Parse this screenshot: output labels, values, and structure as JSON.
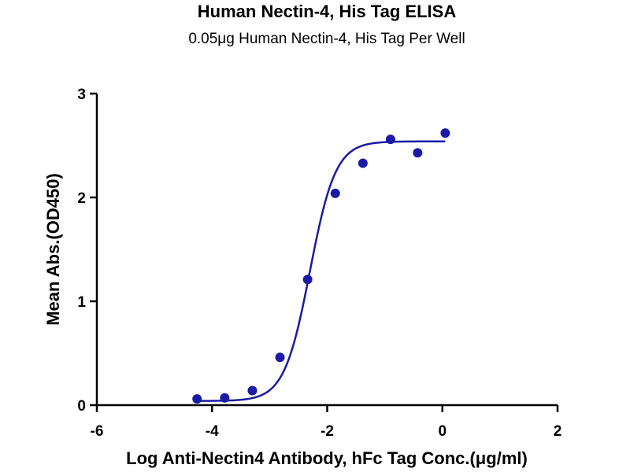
{
  "chart_data": {
    "type": "scatter",
    "title": "Human Nectin-4, His Tag ELISA",
    "subtitle": "0.05μg Human Nectin-4, His Tag Per Well",
    "xlabel": "Log Anti-Nectin4 Antibody, hFc Tag Conc.(μg/ml)",
    "ylabel": "Mean Abs.(OD450)",
    "xlim": [
      -6,
      2
    ],
    "ylim": [
      0,
      3
    ],
    "xticks": [
      -6,
      -4,
      -2,
      0,
      2
    ],
    "yticks": [
      0,
      1,
      2,
      3
    ],
    "grid": false,
    "series": [
      {
        "color": "#1a1aa6",
        "points": [
          {
            "x": -4.26,
            "y": 0.06
          },
          {
            "x": -3.78,
            "y": 0.07
          },
          {
            "x": -3.3,
            "y": 0.14
          },
          {
            "x": -2.82,
            "y": 0.46
          },
          {
            "x": -2.34,
            "y": 1.21
          },
          {
            "x": -1.86,
            "y": 2.04
          },
          {
            "x": -1.38,
            "y": 2.33
          },
          {
            "x": -0.9,
            "y": 2.56
          },
          {
            "x": -0.43,
            "y": 2.43
          },
          {
            "x": 0.05,
            "y": 2.62
          }
        ]
      }
    ],
    "fit_curve": {
      "model": "4PL",
      "bottom": 0.04,
      "top": 2.54,
      "log_ec50": -2.3,
      "hill_slope": 1.95,
      "x_range": [
        -4.26,
        0.05
      ],
      "color": "#1a1aa6"
    }
  }
}
